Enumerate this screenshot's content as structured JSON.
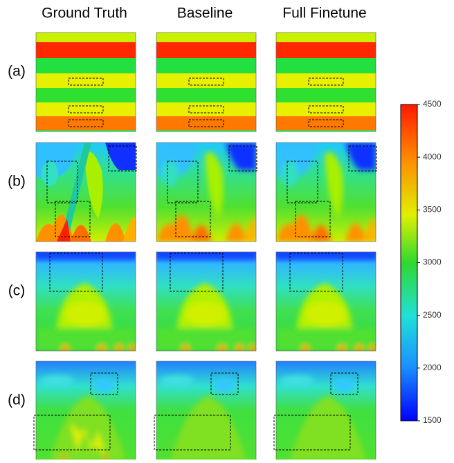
{
  "columns": [
    "Ground Truth",
    "Baseline",
    "Full Finetune"
  ],
  "rows": [
    "(a)",
    "(b)",
    "(c)",
    "(d)"
  ],
  "colorbar": {
    "lim": [
      1500,
      4500
    ],
    "ticks": [
      1500,
      2000,
      2500,
      3000,
      3500,
      4000,
      4500
    ]
  }
}
